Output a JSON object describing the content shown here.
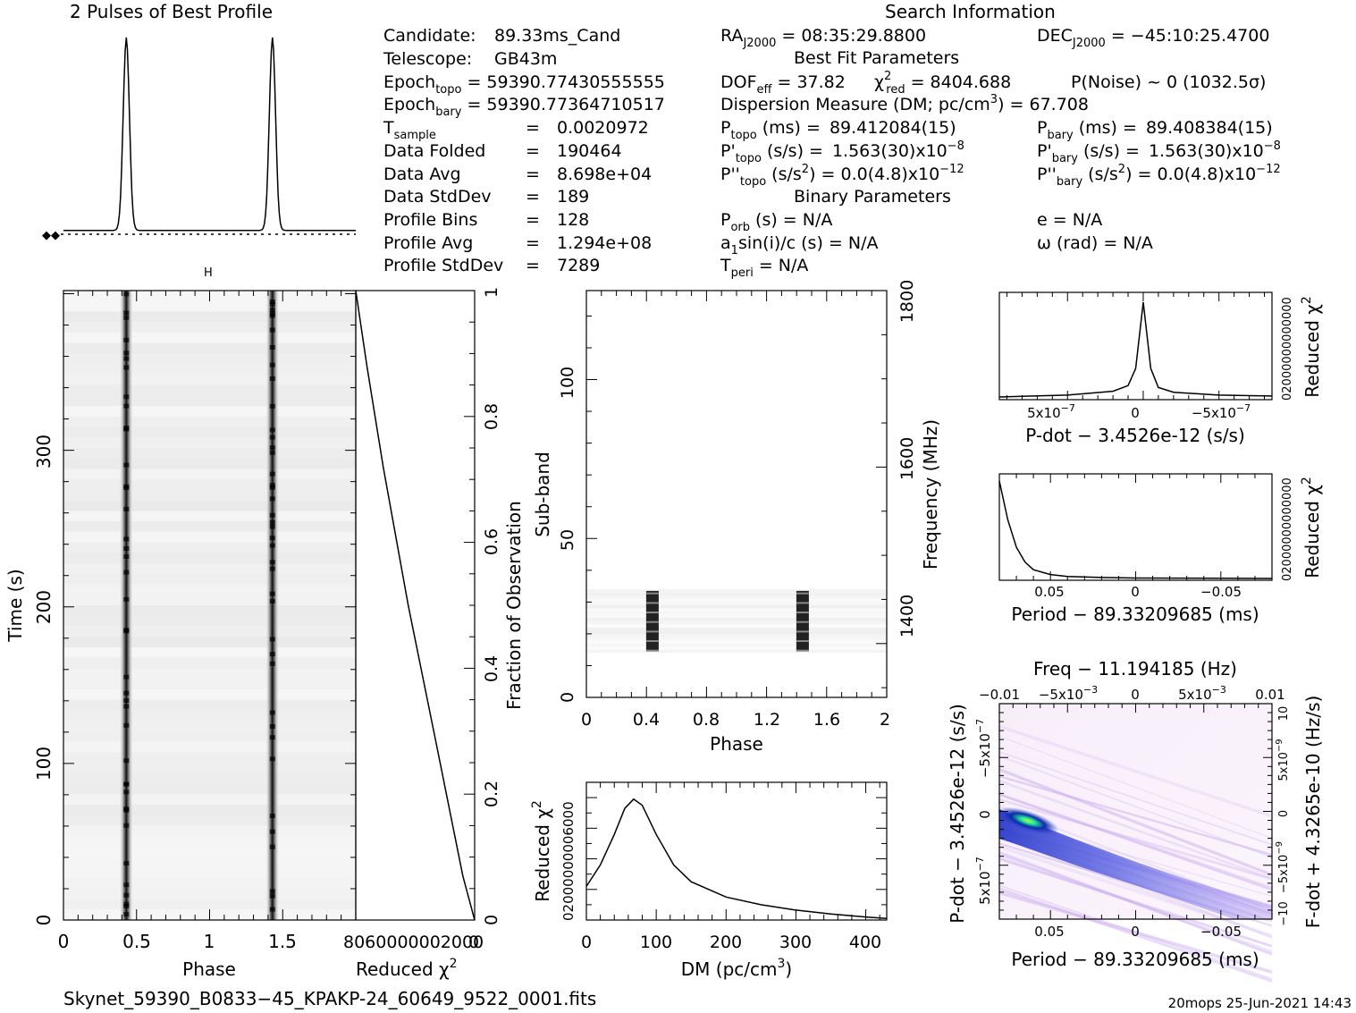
{
  "profile": {
    "title": "2 Pulses of Best Profile",
    "legend": "◆◆"
  },
  "candidate_info": [
    {
      "label": "Candidate:",
      "value": "89.33ms_Cand"
    },
    {
      "label": "Telescope:",
      "value": "GB43m"
    },
    {
      "label": "Epoch",
      "sub": "topo",
      "value": "= 59390.77430555555"
    },
    {
      "label": "Epoch",
      "sub": "bary",
      "value": "= 59390.77364710517"
    },
    {
      "label": "T",
      "sub": "sample",
      "eq": "=",
      "value": "0.0020972"
    },
    {
      "label": "Data Folded",
      "eq": "=",
      "value": "190464"
    },
    {
      "label": "Data Avg",
      "eq": "=",
      "value": "8.698e+04"
    },
    {
      "label": "Data StdDev",
      "eq": "=",
      "value": "189"
    },
    {
      "label": "Profile Bins",
      "eq": "=",
      "value": "128"
    },
    {
      "label": "Profile Avg",
      "eq": "=",
      "value": "1.294e+08"
    },
    {
      "label": "Profile StdDev",
      "eq": "=",
      "value": "7289"
    }
  ],
  "search_info": {
    "title": "Search Information",
    "ra": {
      "label": "RA",
      "sub": "J2000",
      "value": "= 08:35:29.8800"
    },
    "dec": {
      "label": "DEC",
      "sub": "J2000",
      "value": "= −45:10:25.4700"
    },
    "best_fit_title": "Best Fit Parameters",
    "dof": {
      "label": "DOF",
      "sub": "eff",
      "value": "= 37.82"
    },
    "chi": {
      "label": "χ",
      "sup": "2",
      "sub": "red",
      "value": "= 8404.688"
    },
    "pnoise": "P(Noise) ~ 0   (1032.5σ)",
    "dm_label": "Dispersion Measure (DM; pc/cm",
    "dm_sup": "3",
    "dm_value": ") = 67.708",
    "ptopo": {
      "label": "P",
      "sub": "topo",
      "unit": "(ms) =",
      "value": "89.412084(15)"
    },
    "pbary": {
      "label": "P",
      "sub": "bary",
      "unit": "(ms) =",
      "value": "89.408384(15)"
    },
    "pdtopo": {
      "label": "P'",
      "sub": "topo",
      "unit": "(s/s) =",
      "value": "1.563(30)x10",
      "exp": "−8"
    },
    "pdbary": {
      "label": "P'",
      "sub": "bary",
      "unit": "(s/s) =",
      "value": "1.563(30)x10",
      "exp": "−8"
    },
    "pddtopo": {
      "label": "P''",
      "sub": "topo",
      "unit": "(s/s",
      "unitsup": "2",
      "unit2": ") = 0.0(4.8)x10",
      "exp": "−12"
    },
    "pddbary": {
      "label": "P''",
      "sub": "bary",
      "unit": "(s/s",
      "unitsup": "2",
      "unit2": ") = 0.0(4.8)x10",
      "exp": "−12"
    },
    "binary_title": "Binary Parameters",
    "porb": {
      "label": "P",
      "sub": "orb",
      "value": "(s) = N/A"
    },
    "e": "e = N/A",
    "a1": {
      "label": "a",
      "sub": "1",
      "value": "sin(i)/c (s) = N/A"
    },
    "omega": "ω (rad) = N/A",
    "tperi": {
      "label": "T",
      "sub": "peri",
      "value": "= N/A"
    }
  },
  "time_phase": {
    "xlabel": "Phase",
    "ylabel": "Time (s)",
    "xticks": [
      "0",
      "0.5",
      "1",
      "1.5"
    ],
    "yticks": [
      "0",
      "100",
      "200",
      "300"
    ],
    "top_marker": "H"
  },
  "chi_vs_time": {
    "xlabel": "Reduced χ",
    "xlabel_sup": "2",
    "xticks_text": "8060000002000",
    "xticks_end": "0",
    "right_label": "Fraction of Observation",
    "right_ticks": [
      "0",
      "0.2",
      "0.4",
      "0.6",
      "0.8",
      "1"
    ]
  },
  "subband": {
    "xlabel": "Phase",
    "ylabel": "Sub-band",
    "right_label": "Frequency (MHz)",
    "xticks": [
      "0",
      "0.4",
      "0.8",
      "1.2",
      "1.6",
      "2"
    ],
    "yticks": [
      "0",
      "50",
      "100"
    ],
    "right_ticks": [
      "1400",
      "1600",
      "1800"
    ]
  },
  "dm_plot": {
    "xlabel": "DM (pc/cm",
    "xlabel_sup": "3",
    "xlabel_end": ")",
    "ylabel": "Reduced χ",
    "ylabel_sup": "2",
    "xticks": [
      "0",
      "100",
      "200",
      "300",
      "400"
    ],
    "yticks_text": "02000000006000"
  },
  "pdot_plot": {
    "xlabel": "P-dot − 3.4526e-12 (s/s)",
    "ylabel": "Reduced χ",
    "ylabel_sup": "2",
    "xticks": [
      "5x10",
      "0",
      "−5x10"
    ],
    "xtick_exp": "−7",
    "yticks_text": "02000000000000"
  },
  "period_plot": {
    "xlabel": "Period − 89.33209685 (ms)",
    "ylabel": "Reduced χ",
    "ylabel_sup": "2",
    "xticks": [
      "0.05",
      "0",
      "−0.05"
    ],
    "yticks_text": "02000000000000"
  },
  "pp_plot": {
    "title": "Freq − 11.194185 (Hz)",
    "top_ticks": [
      "−0.01",
      "−5x10",
      "0",
      "5x10",
      "0.01"
    ],
    "top_exp": "−3",
    "xlabel": "Period − 89.33209685 (ms)",
    "xticks": [
      "0.05",
      "0",
      "−0.05"
    ],
    "ylabel": "P-dot − 3.4526e-12 (s/s)",
    "yticks": [
      "−5x10",
      "0",
      "5x10"
    ],
    "ytick_exp": "−7",
    "right_label": "F-dot + 4.3265e-10 (Hz/s)",
    "right_ticks": [
      "10",
      "5x10",
      "0",
      "−5x10",
      "−10"
    ],
    "right_exp": "−9"
  },
  "footer": {
    "filename": "Skynet_59390_B0833−45_KPAKP-24_60649_9522_0001.fits",
    "stamp": "20mops 25-Jun-2021 14:43"
  },
  "chart_data": [
    {
      "type": "line",
      "id": "pulse_profile",
      "title": "2 Pulses of Best Profile",
      "x_range": [
        0,
        2
      ],
      "peaks_phase": [
        0.43,
        1.43
      ],
      "baseline_level": 0.09,
      "peak_level": 1.0
    },
    {
      "type": "heatmap",
      "id": "time_vs_phase",
      "x_range": [
        0,
        2
      ],
      "y_range": [
        0,
        390
      ],
      "pulse_phases": [
        0.43,
        1.43
      ],
      "xlabel": "Phase",
      "ylabel": "Time (s)"
    },
    {
      "type": "line",
      "id": "chi_vs_fraction",
      "x_range": [
        0,
        8060
      ],
      "y_range": [
        0,
        1
      ],
      "x": [
        8060,
        7300,
        6200,
        4500,
        2600,
        800,
        0
      ],
      "y": [
        1.0,
        0.88,
        0.72,
        0.5,
        0.28,
        0.07,
        0.0
      ]
    },
    {
      "type": "heatmap",
      "id": "subband_vs_phase",
      "x_range": [
        0,
        2
      ],
      "y_range": [
        0,
        128
      ],
      "active_subbands": [
        14,
        34
      ],
      "pulse_phases": [
        0.44,
        1.44
      ],
      "xlabel": "Phase",
      "ylabel": "Sub-band"
    },
    {
      "type": "line",
      "id": "chi_vs_dm",
      "x_range": [
        0,
        430
      ],
      "y_range": [
        0,
        9000
      ],
      "x": [
        0,
        20,
        40,
        55,
        67.7,
        80,
        100,
        125,
        150,
        200,
        250,
        300,
        350,
        400,
        430
      ],
      "y": [
        2200,
        3600,
        5600,
        7300,
        7900,
        7500,
        5600,
        3600,
        2500,
        1500,
        1000,
        650,
        400,
        200,
        100
      ],
      "xlabel": "DM (pc/cm3)"
    },
    {
      "type": "line",
      "id": "chi_vs_pdot",
      "x_range": [
        9.5e-07,
        -8.5e-07
      ],
      "x": [
        9.5e-07,
        5e-07,
        2e-07,
        1e-07,
        5e-08,
        0,
        -5e-08,
        -1e-07,
        -2e-07,
        -5e-07,
        -8.5e-07
      ],
      "y": [
        0.0,
        0.02,
        0.06,
        0.12,
        0.3,
        1.0,
        0.3,
        0.1,
        0.05,
        0.02,
        0.01
      ]
    },
    {
      "type": "line",
      "id": "chi_vs_period",
      "x_range": [
        0.08,
        -0.08
      ],
      "x": [
        0.08,
        0.075,
        0.07,
        0.065,
        0.06,
        0.05,
        0.04,
        0.02,
        0,
        -0.05,
        -0.08
      ],
      "y": [
        1.0,
        0.6,
        0.32,
        0.17,
        0.09,
        0.04,
        0.02,
        0.01,
        0.005,
        0.002,
        0.0
      ]
    },
    {
      "type": "heatmap",
      "id": "period_pdot",
      "x_range": [
        0.08,
        -0.08
      ],
      "y_range": [
        -9e-07,
        1e-06
      ],
      "peak": [
        0.075,
        0.0
      ],
      "xlabel": "Period − 89.33209685 (ms)",
      "ylabel": "P-dot − 3.4526e-12 (s/s)"
    }
  ]
}
